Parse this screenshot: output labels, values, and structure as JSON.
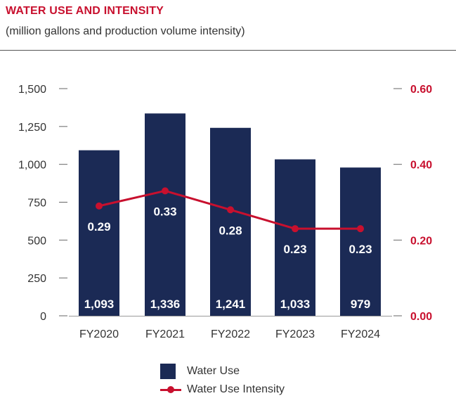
{
  "header": {
    "title": "WATER USE AND INTENSITY",
    "subtitle": "(million gallons and production volume intensity)"
  },
  "colors": {
    "bar": "#1b2a55",
    "line": "#c8102e",
    "title": "#c8102e",
    "axis_left": "#333333",
    "axis_right": "#c8102e"
  },
  "chart_data": {
    "type": "bar",
    "title": "WATER USE AND INTENSITY",
    "subtitle": "(million gallons and production volume intensity)",
    "categories": [
      "FY2020",
      "FY2021",
      "FY2022",
      "FY2023",
      "FY2024"
    ],
    "series": [
      {
        "name": "Water Use",
        "type": "bar",
        "axis": "left",
        "values": [
          1093,
          1336,
          1241,
          1033,
          979
        ],
        "labels": [
          "1,093",
          "1,336",
          "1,241",
          "1,033",
          "979"
        ]
      },
      {
        "name": "Water Use Intensity",
        "type": "line",
        "axis": "right",
        "values": [
          0.29,
          0.33,
          0.28,
          0.23,
          0.23
        ],
        "labels": [
          "0.29",
          "0.33",
          "0.28",
          "0.23",
          "0.23"
        ]
      }
    ],
    "y_left": {
      "ylim": [
        0,
        1500
      ],
      "ticks": [
        0,
        250,
        500,
        750,
        1000,
        1250,
        1500
      ],
      "tick_labels": [
        "0",
        "250",
        "500",
        "750",
        "1,000",
        "1,250",
        "1,500"
      ]
    },
    "y_right": {
      "ylim": [
        0,
        0.6
      ],
      "ticks": [
        0,
        0.2,
        0.4,
        0.6
      ],
      "tick_labels": [
        "0.00",
        "0.20",
        "0.40",
        "0.60"
      ]
    },
    "grid": false,
    "legend_position": "bottom"
  },
  "legend": {
    "items": [
      {
        "label": "Water Use"
      },
      {
        "label": "Water Use Intensity"
      }
    ]
  }
}
